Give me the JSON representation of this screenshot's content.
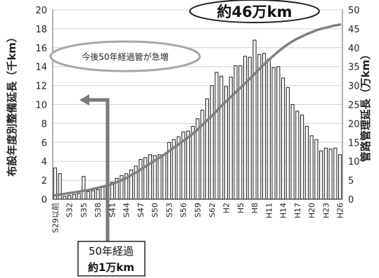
{
  "chart_data": {
    "type": "bar",
    "ylabel_left": "布設年度別整備延長（千km）",
    "ylabel_right": "管路管理延長（万km）",
    "ylim_left": [
      0,
      20
    ],
    "ylim_right": [
      0,
      50
    ],
    "yticks_left": [
      "0",
      "2",
      "4",
      "6",
      "8",
      "10",
      "12",
      "14",
      "16",
      "18",
      "20"
    ],
    "yticks_right": [
      "0",
      "5",
      "10",
      "15",
      "20",
      "25",
      "30",
      "35",
      "40",
      "45",
      "50"
    ],
    "grid": true,
    "categories": [
      "S29以前",
      "S30",
      "S31",
      "S32",
      "S33",
      "S34",
      "S35",
      "S36",
      "S37",
      "S38",
      "S39",
      "S40",
      "S41",
      "S42",
      "S43",
      "S44",
      "S45",
      "S46",
      "S47",
      "S48",
      "S49",
      "S50",
      "S51",
      "S52",
      "S53",
      "S54",
      "S55",
      "S56",
      "S57",
      "S58",
      "S59",
      "S60",
      "S61",
      "S62",
      "S63",
      "H1",
      "H2",
      "H3",
      "H4",
      "H5",
      "H6",
      "H7",
      "H8",
      "H9",
      "H10",
      "H11",
      "H12",
      "H13",
      "H14",
      "H15",
      "H16",
      "H17",
      "H18",
      "H19",
      "H20",
      "H21",
      "H22",
      "H23",
      "H24",
      "H25",
      "H26"
    ],
    "tick_labels": [
      "S29以前",
      "S32",
      "S35",
      "S38",
      "S41",
      "S44",
      "S47",
      "S50",
      "S53",
      "S56",
      "S59",
      "S62",
      "H2",
      "H5",
      "H8",
      "H11",
      "H14",
      "H17",
      "H20",
      "H23",
      "H26"
    ],
    "series": [
      {
        "axis": "left",
        "kind": "bar",
        "values": [
          3.3,
          2.7,
          0.3,
          0.4,
          0.5,
          0.6,
          2.4,
          0.8,
          0.9,
          1.0,
          1.3,
          1.4,
          1.8,
          2.2,
          2.5,
          2.7,
          3.1,
          3.5,
          4.2,
          4.4,
          4.7,
          4.6,
          4.7,
          4.7,
          6.0,
          6.3,
          6.6,
          7.1,
          7.2,
          7.7,
          8.5,
          9.4,
          10.6,
          12.0,
          13.4,
          13.0,
          11.9,
          12.9,
          14.1,
          14.1,
          15.1,
          15.0,
          16.8,
          15.3,
          15.4,
          14.8,
          13.9,
          14.0,
          12.8,
          11.8,
          10.0,
          9.3,
          8.9,
          7.7,
          6.7,
          6.3,
          5.1,
          5.4,
          5.3,
          5.4,
          4.7
        ],
        "color": "#222222"
      },
      {
        "axis": "right",
        "kind": "line",
        "values": [
          1.0,
          1.2,
          1.4,
          1.6,
          1.8,
          2.0,
          2.2,
          2.4,
          2.7,
          3.0,
          3.3,
          3.6,
          4.0,
          4.5,
          5.0,
          5.6,
          6.3,
          7.0,
          7.8,
          8.6,
          9.4,
          10.2,
          11.0,
          11.8,
          12.7,
          13.6,
          14.5,
          15.4,
          16.3,
          17.3,
          18.4,
          19.6,
          20.8,
          22.0,
          23.3,
          24.6,
          25.8,
          27.0,
          28.2,
          29.4,
          30.6,
          31.8,
          33.1,
          34.4,
          35.6,
          36.8,
          37.9,
          39.0,
          40.0,
          40.9,
          41.7,
          42.4,
          43.0,
          43.6,
          44.1,
          44.6,
          45.0,
          45.3,
          45.6,
          45.9,
          46.1
        ],
        "color": "#808080"
      }
    ],
    "annotations": {
      "total": "約46万km",
      "increase": "今後50年経過管が急増",
      "over50_line1": "50年経過",
      "over50_line2": "約1万km"
    }
  }
}
